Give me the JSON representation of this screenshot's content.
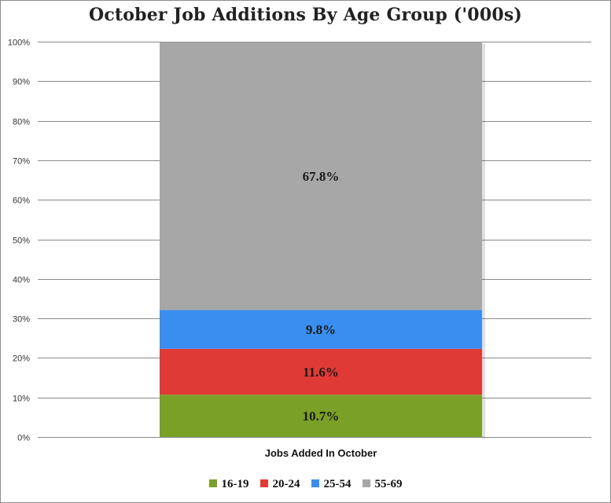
{
  "chart_data": {
    "type": "bar",
    "stacked": true,
    "title": "October Job Additions By Age Group ('000s)",
    "categories": [
      "Jobs Added In October"
    ],
    "ylim": [
      0,
      100
    ],
    "ytick_labels": [
      "0%",
      "10%",
      "20%",
      "30%",
      "40%",
      "50%",
      "60%",
      "70%",
      "80%",
      "90%",
      "100%"
    ],
    "grid": true,
    "legend": "bottom",
    "series": [
      {
        "name": "16-19",
        "values": [
          10.7
        ],
        "label": "10.7%",
        "color": "#7ba028"
      },
      {
        "name": "20-24",
        "values": [
          11.6
        ],
        "label": "11.6%",
        "color": "#e03a36"
      },
      {
        "name": "25-54",
        "values": [
          9.8
        ],
        "label": "9.8%",
        "color": "#3a8ef0"
      },
      {
        "name": "55-69",
        "values": [
          67.8
        ],
        "label": "67.8%",
        "color": "#a7a7a7"
      }
    ]
  }
}
